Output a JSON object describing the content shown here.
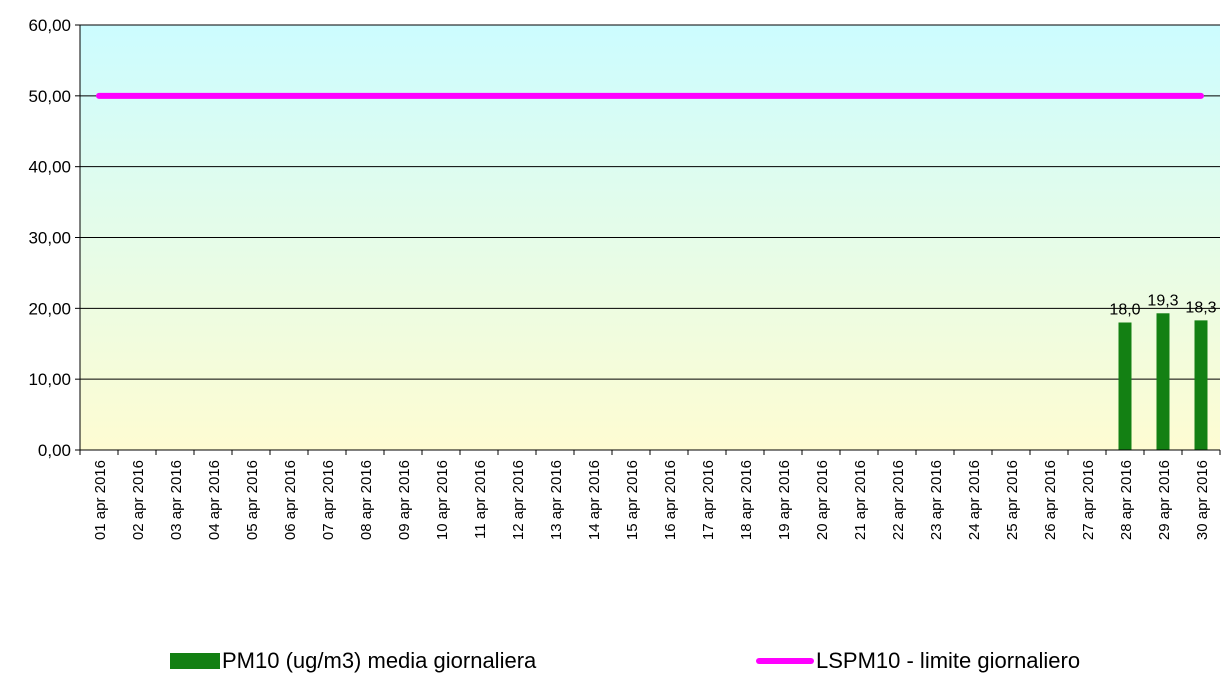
{
  "colors": {
    "bar": "#138013",
    "limit_line": "#ff00ff",
    "bg_top": "#ccfcff",
    "bg_bottom": "#fefcd2",
    "grid": "#000000"
  },
  "chart_data": {
    "type": "bar",
    "title": "",
    "xlabel": "",
    "ylabel": "",
    "ylim": [
      0,
      60
    ],
    "y_ticks": [
      "0,00",
      "10,00",
      "20,00",
      "30,00",
      "40,00",
      "50,00",
      "60,00"
    ],
    "y_tick_values": [
      0,
      10,
      20,
      30,
      40,
      50,
      60
    ],
    "grid": true,
    "legend_position": "bottom",
    "categories": [
      "01 apr 2016",
      "02 apr 2016",
      "03 apr 2016",
      "04 apr 2016",
      "05 apr 2016",
      "06 apr 2016",
      "07 apr 2016",
      "08 apr 2016",
      "09 apr 2016",
      "10 apr 2016",
      "11 apr 2016",
      "12 apr 2016",
      "13 apr 2016",
      "14 apr 2016",
      "15 apr 2016",
      "16 apr 2016",
      "17 apr 2016",
      "18 apr 2016",
      "19 apr 2016",
      "20 apr 2016",
      "21 apr 2016",
      "22 apr 2016",
      "23 apr 2016",
      "24 apr 2016",
      "25 apr 2016",
      "26 apr 2016",
      "27 apr 2016",
      "28 apr 2016",
      "29 apr 2016",
      "30 apr 2016"
    ],
    "series": [
      {
        "name": "PM10 (ug/m3) media giornaliera",
        "type": "bar",
        "values": [
          null,
          null,
          null,
          null,
          null,
          null,
          null,
          null,
          null,
          null,
          null,
          null,
          null,
          null,
          null,
          null,
          null,
          null,
          null,
          null,
          null,
          null,
          null,
          null,
          null,
          null,
          null,
          18.0,
          19.3,
          18.3
        ],
        "data_labels": [
          null,
          null,
          null,
          null,
          null,
          null,
          null,
          null,
          null,
          null,
          null,
          null,
          null,
          null,
          null,
          null,
          null,
          null,
          null,
          null,
          null,
          null,
          null,
          null,
          null,
          null,
          null,
          "18,0",
          "19,3",
          "18,3"
        ]
      },
      {
        "name": "LSPM10 - limite giornaliero",
        "type": "line",
        "values": [
          50,
          50,
          50,
          50,
          50,
          50,
          50,
          50,
          50,
          50,
          50,
          50,
          50,
          50,
          50,
          50,
          50,
          50,
          50,
          50,
          50,
          50,
          50,
          50,
          50,
          50,
          50,
          50,
          50,
          50
        ]
      }
    ]
  },
  "legend": {
    "bar_label": "PM10 (ug/m3) media giornaliera",
    "line_label": "LSPM10 - limite giornaliero"
  }
}
